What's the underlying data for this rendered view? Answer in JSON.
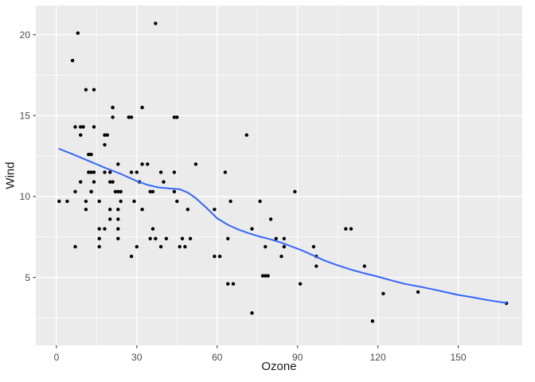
{
  "chart_data": {
    "type": "scatter",
    "xlabel": "Ozone",
    "ylabel": "Wind",
    "legend": "none",
    "grid": "on",
    "x_axis": {
      "ticks": [
        0,
        30,
        60,
        90,
        120,
        150
      ],
      "minor": [
        15,
        45,
        75,
        105,
        135,
        165
      ],
      "lim": [
        -7.7,
        173.9
      ]
    },
    "y_axis": {
      "ticks": [
        5,
        10,
        15,
        20
      ],
      "minor": [
        2.5,
        7.5,
        12.5,
        17.5
      ],
      "lim": [
        0.8,
        21.8
      ]
    },
    "style": {
      "panel_bg": "#EBEBEB",
      "grid_major_color": "#FFFFFF",
      "grid_minor_color": "#FFFFFF",
      "point_color": "#000000",
      "smooth_color": "#3366FF",
      "axis_text_color": "#4D4D4D",
      "axis_title_color": "#1A1A1A",
      "tick_color": "#333333"
    },
    "series": [
      {
        "name": "points",
        "type": "scatter",
        "points": [
          [
            41,
            7.4
          ],
          [
            36,
            8
          ],
          [
            12,
            12.6
          ],
          [
            18,
            11.5
          ],
          [
            28,
            14.9
          ],
          [
            23,
            8.6
          ],
          [
            19,
            13.8
          ],
          [
            8,
            20.1
          ],
          [
            7,
            6.9
          ],
          [
            16,
            9.7
          ],
          [
            11,
            9.2
          ],
          [
            14,
            10.9
          ],
          [
            18,
            13.2
          ],
          [
            14,
            11.5
          ],
          [
            34,
            12
          ],
          [
            6,
            18.4
          ],
          [
            30,
            11.5
          ],
          [
            11,
            9.7
          ],
          [
            1,
            9.7
          ],
          [
            11,
            16.6
          ],
          [
            4,
            9.7
          ],
          [
            32,
            12
          ],
          [
            23,
            12
          ],
          [
            45,
            14.9
          ],
          [
            115,
            5.7
          ],
          [
            37,
            7.4
          ],
          [
            29,
            9.7
          ],
          [
            71,
            13.8
          ],
          [
            39,
            11.5
          ],
          [
            23,
            8
          ],
          [
            21,
            14.9
          ],
          [
            37,
            20.7
          ],
          [
            20,
            9.2
          ],
          [
            12,
            11.5
          ],
          [
            13,
            10.3
          ],
          [
            135,
            4.1
          ],
          [
            49,
            9.2
          ],
          [
            32,
            9.2
          ],
          [
            64,
            4.6
          ],
          [
            40,
            10.9
          ],
          [
            77,
            5.1
          ],
          [
            97,
            6.3
          ],
          [
            97,
            5.7
          ],
          [
            85,
            7.4
          ],
          [
            10,
            14.3
          ],
          [
            27,
            14.9
          ],
          [
            7,
            14.3
          ],
          [
            48,
            6.9
          ],
          [
            35,
            10.3
          ],
          [
            61,
            6.3
          ],
          [
            79,
            5.1
          ],
          [
            63,
            11.5
          ],
          [
            16,
            6.9
          ],
          [
            80,
            8.6
          ],
          [
            108,
            8
          ],
          [
            20,
            8.6
          ],
          [
            52,
            12
          ],
          [
            82,
            7.4
          ],
          [
            50,
            7.4
          ],
          [
            64,
            7.4
          ],
          [
            59,
            9.2
          ],
          [
            39,
            6.9
          ],
          [
            9,
            13.8
          ],
          [
            16,
            7.4
          ],
          [
            78,
            6.9
          ],
          [
            35,
            7.4
          ],
          [
            66,
            4.6
          ],
          [
            122,
            4
          ],
          [
            89,
            10.3
          ],
          [
            110,
            8
          ],
          [
            44,
            11.5
          ],
          [
            28,
            11.5
          ],
          [
            65,
            9.7
          ],
          [
            22,
            10.3
          ],
          [
            59,
            6.3
          ],
          [
            23,
            7.4
          ],
          [
            31,
            10.9
          ],
          [
            44,
            10.3
          ],
          [
            21,
            15.5
          ],
          [
            9,
            14.3
          ],
          [
            45,
            9.7
          ],
          [
            168,
            3.4
          ],
          [
            73,
            8
          ],
          [
            76,
            9.7
          ],
          [
            118,
            2.3
          ],
          [
            84,
            6.3
          ],
          [
            85,
            6.9
          ],
          [
            96,
            6.9
          ],
          [
            78,
            5.1
          ],
          [
            73,
            2.8
          ],
          [
            91,
            4.6
          ],
          [
            47,
            7.4
          ],
          [
            32,
            15.5
          ],
          [
            20,
            10.9
          ],
          [
            23,
            10.3
          ],
          [
            21,
            10.9
          ],
          [
            24,
            9.7
          ],
          [
            44,
            14.9
          ],
          [
            21,
            15.5
          ],
          [
            28,
            6.3
          ],
          [
            9,
            10.9
          ],
          [
            13,
            11.5
          ],
          [
            46,
            6.9
          ],
          [
            18,
            13.8
          ],
          [
            13,
            10.3
          ],
          [
            24,
            10.3
          ],
          [
            16,
            8
          ],
          [
            13,
            12.6
          ],
          [
            23,
            9.2
          ],
          [
            36,
            10.3
          ],
          [
            7,
            10.3
          ],
          [
            14,
            16.6
          ],
          [
            30,
            6.9
          ],
          [
            14,
            14.3
          ],
          [
            18,
            8
          ],
          [
            20,
            11.5
          ]
        ]
      },
      {
        "name": "loess-smooth",
        "type": "line",
        "color": "#3366FF",
        "points": [
          [
            1,
            12.95
          ],
          [
            6,
            12.62
          ],
          [
            12,
            12.2
          ],
          [
            18,
            11.78
          ],
          [
            24,
            11.4
          ],
          [
            30,
            10.95
          ],
          [
            34,
            10.72
          ],
          [
            38,
            10.56
          ],
          [
            42,
            10.5
          ],
          [
            46,
            10.45
          ],
          [
            49,
            10.25
          ],
          [
            52,
            9.9
          ],
          [
            56,
            9.3
          ],
          [
            60,
            8.65
          ],
          [
            64,
            8.25
          ],
          [
            68,
            7.95
          ],
          [
            72,
            7.72
          ],
          [
            76,
            7.52
          ],
          [
            80,
            7.35
          ],
          [
            84,
            7.15
          ],
          [
            88,
            6.9
          ],
          [
            92,
            6.65
          ],
          [
            96,
            6.35
          ],
          [
            100,
            6.05
          ],
          [
            105,
            5.75
          ],
          [
            110,
            5.48
          ],
          [
            115,
            5.25
          ],
          [
            120,
            5.05
          ],
          [
            125,
            4.82
          ],
          [
            130,
            4.6
          ],
          [
            135,
            4.45
          ],
          [
            140,
            4.28
          ],
          [
            145,
            4.1
          ],
          [
            150,
            3.92
          ],
          [
            155,
            3.78
          ],
          [
            160,
            3.63
          ],
          [
            164,
            3.52
          ],
          [
            168,
            3.42
          ]
        ]
      }
    ]
  }
}
